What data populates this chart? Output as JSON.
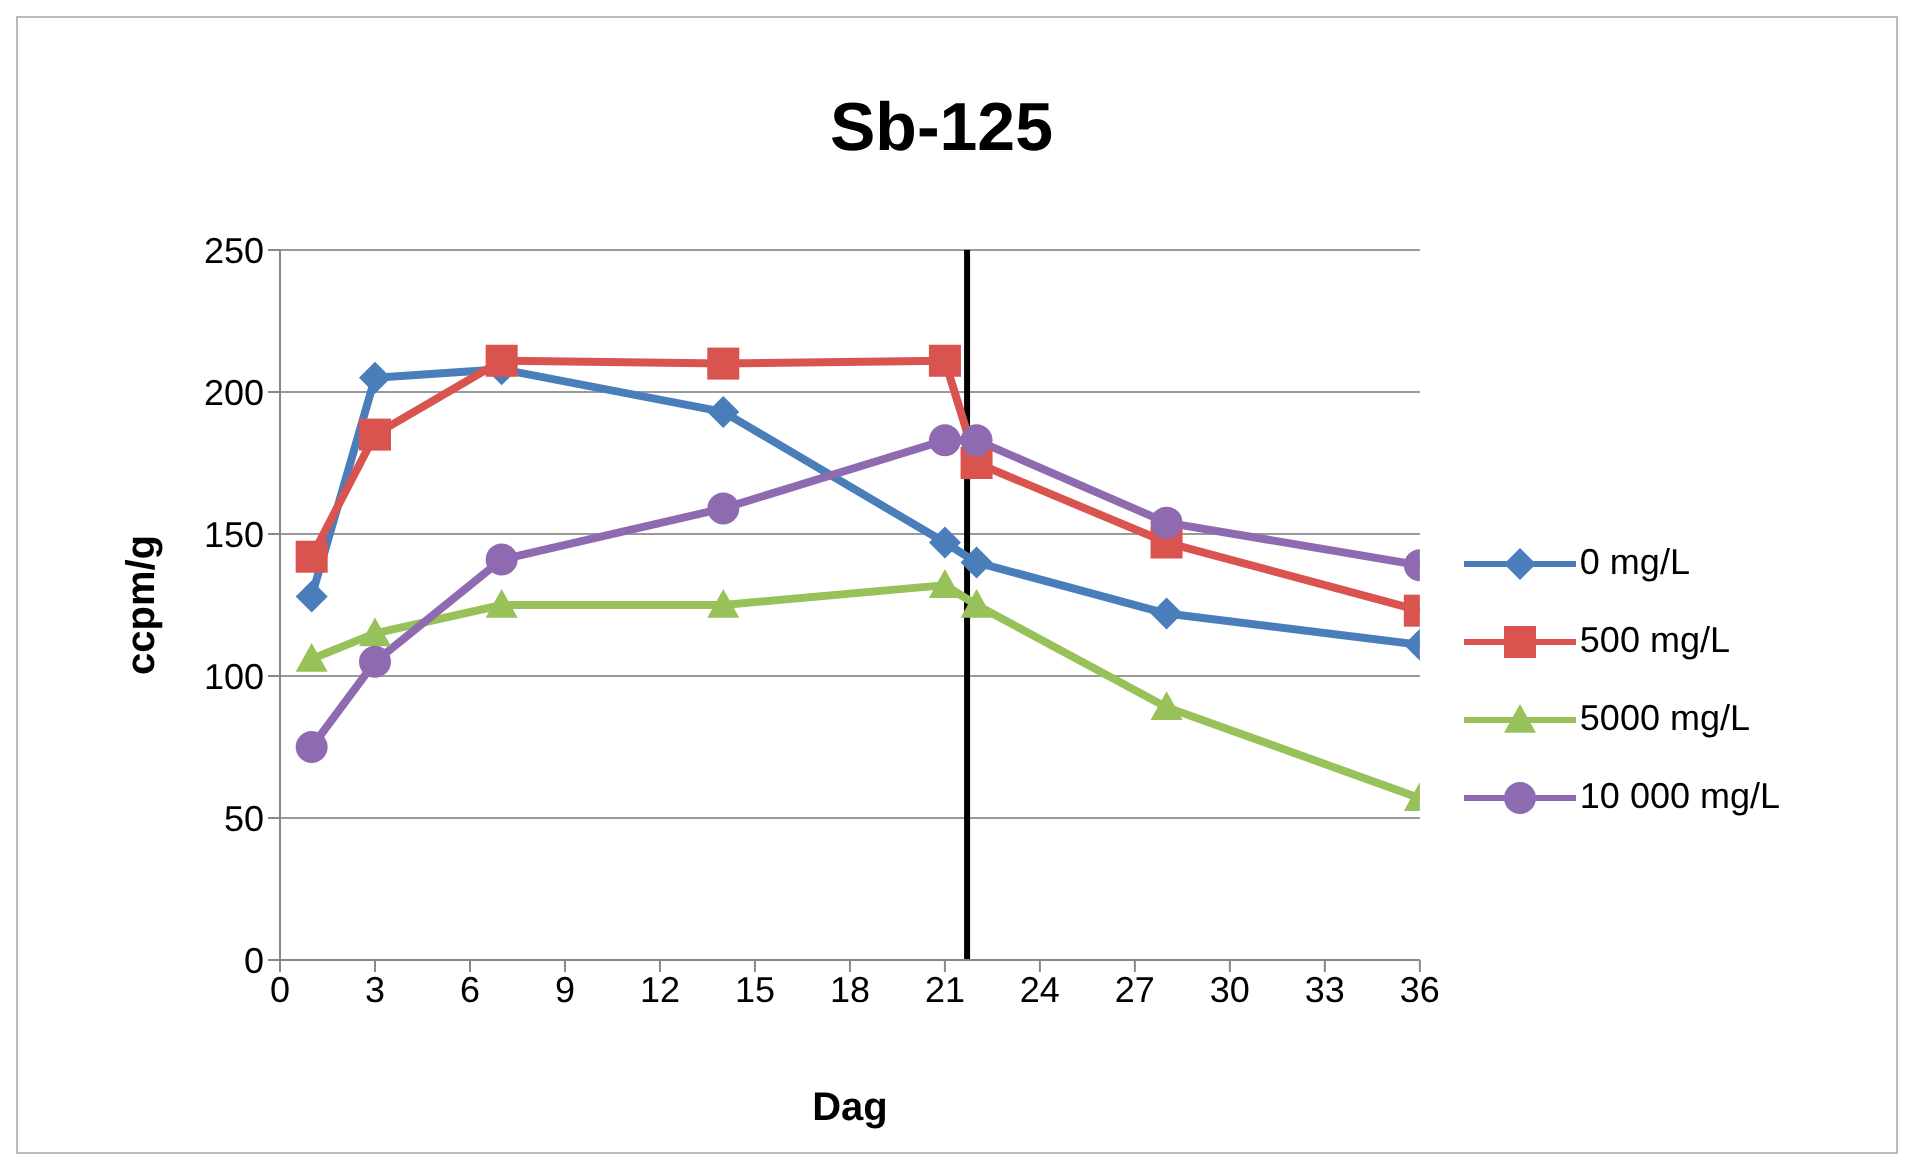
{
  "chart_data": {
    "type": "line",
    "title": "Sb-125",
    "xlabel": "Dag",
    "ylabel": "ccpm/g",
    "x": [
      1,
      3,
      7,
      14,
      21,
      22,
      28,
      36
    ],
    "series": [
      {
        "name": "0 mg/L",
        "color": "#4a7ebb",
        "marker": "diamond",
        "values": [
          128,
          205,
          208,
          193,
          147,
          140,
          122,
          111
        ]
      },
      {
        "name": "500 mg/L",
        "color": "#d9534f",
        "marker": "square",
        "values": [
          142,
          185,
          211,
          210,
          211,
          175,
          147,
          123
        ]
      },
      {
        "name": "5000 mg/L",
        "color": "#98c15a",
        "marker": "triangle",
        "values": [
          106,
          115,
          125,
          125,
          132,
          125,
          89,
          57
        ]
      },
      {
        "name": "10 000 mg/L",
        "color": "#8e6bb0",
        "marker": "circle",
        "values": [
          75,
          105,
          141,
          159,
          183,
          183,
          154,
          139
        ]
      }
    ],
    "xlim": [
      0,
      36
    ],
    "xticks": [
      0,
      3,
      6,
      9,
      12,
      15,
      18,
      21,
      24,
      27,
      30,
      33,
      36
    ],
    "ylim": [
      0,
      250
    ],
    "yticks": [
      0,
      50,
      100,
      150,
      200,
      250
    ],
    "grid": "y",
    "legend": "right",
    "ref_lines": [
      {
        "axis": "x",
        "value": 21.7,
        "color": "#000000"
      }
    ]
  }
}
